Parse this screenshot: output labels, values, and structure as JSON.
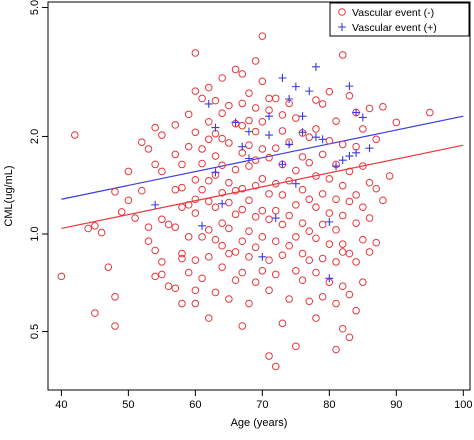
{
  "chart_data": {
    "type": "scatter",
    "xlabel": "Age (years)",
    "ylabel": "CML(ug/mL)",
    "xlim": [
      38,
      101
    ],
    "ylim": [
      0.33,
      5.2
    ],
    "y_scale": "log",
    "x_ticks": [
      40,
      50,
      60,
      70,
      80,
      90,
      100
    ],
    "y_ticks": [
      0.5,
      1.0,
      2.0,
      5.0
    ],
    "y_tick_labels": [
      "0.5",
      "1.0",
      "2.0",
      "5.0"
    ],
    "grid": false,
    "legend_position": "top-right",
    "series": [
      {
        "name": "Vascular event (-)",
        "color": "#e8383d",
        "marker": "circle",
        "points": [
          [
            40,
            0.74
          ],
          [
            42,
            2.02
          ],
          [
            44,
            1.04
          ],
          [
            45,
            0.57
          ],
          [
            45,
            1.06
          ],
          [
            46,
            1.01
          ],
          [
            47,
            0.79
          ],
          [
            48,
            0.64
          ],
          [
            48,
            0.52
          ],
          [
            48,
            1.35
          ],
          [
            49,
            1.17
          ],
          [
            50,
            1.27
          ],
          [
            50,
            1.56
          ],
          [
            51,
            1.12
          ],
          [
            52,
            1.36
          ],
          [
            52,
            1.92
          ],
          [
            53,
            0.95
          ],
          [
            53,
            1.05
          ],
          [
            53,
            1.83
          ],
          [
            54,
            0.89
          ],
          [
            54,
            0.74
          ],
          [
            54,
            2.13
          ],
          [
            54,
            1.64
          ],
          [
            55,
            0.75
          ],
          [
            55,
            0.82
          ],
          [
            55,
            1.11
          ],
          [
            55,
            1.56
          ],
          [
            55,
            2.02
          ],
          [
            56,
            0.69
          ],
          [
            56,
            1.07
          ],
          [
            57,
            0.68
          ],
          [
            57,
            1.05
          ],
          [
            57,
            1.37
          ],
          [
            57,
            1.76
          ],
          [
            57,
            2.17
          ],
          [
            58,
            0.84
          ],
          [
            58,
            0.61
          ],
          [
            58,
            0.87
          ],
          [
            58,
            1.21
          ],
          [
            58,
            1.39
          ],
          [
            58,
            1.64
          ],
          [
            59,
            0.76
          ],
          [
            59,
            0.98
          ],
          [
            59,
            1.23
          ],
          [
            59,
            1.86
          ],
          [
            59,
            2.34
          ],
          [
            60,
            0.61
          ],
          [
            60,
            0.67
          ],
          [
            60,
            0.83
          ],
          [
            60,
            1.16
          ],
          [
            60,
            1.28
          ],
          [
            60,
            1.47
          ],
          [
            60,
            2.06
          ],
          [
            60,
            2.76
          ],
          [
            60,
            3.62
          ],
          [
            61,
            0.73
          ],
          [
            61,
            0.98
          ],
          [
            61,
            1.37
          ],
          [
            61,
            1.65
          ],
          [
            61,
            1.83
          ],
          [
            61,
            2.62
          ],
          [
            62,
            0.55
          ],
          [
            62,
            0.85
          ],
          [
            62,
            1.03
          ],
          [
            62,
            1.26
          ],
          [
            62,
            1.46
          ],
          [
            62,
            1.96
          ],
          [
            62,
            2.22
          ],
          [
            62,
            2.83
          ],
          [
            63,
            0.66
          ],
          [
            63,
            0.96
          ],
          [
            63,
            1.21
          ],
          [
            63,
            1.52
          ],
          [
            63,
            1.74
          ],
          [
            63,
            2.04
          ],
          [
            63,
            2.58
          ],
          [
            64,
            0.79
          ],
          [
            64,
            0.92
          ],
          [
            64,
            1.08
          ],
          [
            64,
            1.34
          ],
          [
            64,
            1.63
          ],
          [
            64,
            1.97
          ],
          [
            64,
            2.36
          ],
          [
            64,
            3.03
          ],
          [
            65,
            0.63
          ],
          [
            65,
            0.87
          ],
          [
            65,
            1.04
          ],
          [
            65,
            1.25
          ],
          [
            65,
            1.44
          ],
          [
            65,
            1.91
          ],
          [
            65,
            2.49
          ],
          [
            66,
            0.72
          ],
          [
            66,
            0.88
          ],
          [
            66,
            1.15
          ],
          [
            66,
            1.36
          ],
          [
            66,
            1.58
          ],
          [
            66,
            2.19
          ],
          [
            66,
            3.22
          ],
          [
            67,
            0.52
          ],
          [
            67,
            0.76
          ],
          [
            67,
            0.95
          ],
          [
            67,
            1.19
          ],
          [
            67,
            1.38
          ],
          [
            67,
            1.78
          ],
          [
            67,
            2.16
          ],
          [
            67,
            2.53
          ],
          [
            67,
            3.12
          ],
          [
            68,
            0.61
          ],
          [
            68,
            0.85
          ],
          [
            68,
            1.02
          ],
          [
            68,
            1.27
          ],
          [
            68,
            1.62
          ],
          [
            68,
            1.88
          ],
          [
            68,
            2.24
          ],
          [
            68,
            2.72
          ],
          [
            69,
            0.71
          ],
          [
            69,
            0.91
          ],
          [
            69,
            1.13
          ],
          [
            69,
            1.41
          ],
          [
            69,
            1.69
          ],
          [
            69,
            2.07
          ],
          [
            69,
            2.45
          ],
          [
            69,
            3.42
          ],
          [
            70,
            0.77
          ],
          [
            70,
            0.98
          ],
          [
            70,
            1.18
          ],
          [
            70,
            1.48
          ],
          [
            70,
            1.83
          ],
          [
            70,
            2.22
          ],
          [
            70,
            2.96
          ],
          [
            70,
            4.08
          ],
          [
            71,
            0.42
          ],
          [
            71,
            0.67
          ],
          [
            71,
            0.83
          ],
          [
            71,
            1.11
          ],
          [
            71,
            1.33
          ],
          [
            71,
            1.72
          ],
          [
            71,
            2.41
          ],
          [
            71,
            2.62
          ],
          [
            72,
            0.39
          ],
          [
            72,
            0.75
          ],
          [
            72,
            0.95
          ],
          [
            72,
            1.18
          ],
          [
            72,
            1.43
          ],
          [
            72,
            1.84
          ],
          [
            72,
            2.62
          ],
          [
            73,
            0.53
          ],
          [
            73,
            0.86
          ],
          [
            73,
            1.07
          ],
          [
            73,
            1.32
          ],
          [
            73,
            1.64
          ],
          [
            73,
            2.08
          ],
          [
            73,
            2.33
          ],
          [
            74,
            0.63
          ],
          [
            74,
            0.92
          ],
          [
            74,
            1.14
          ],
          [
            74,
            1.46
          ],
          [
            74,
            1.92
          ],
          [
            74,
            2.53
          ],
          [
            75,
            0.45
          ],
          [
            75,
            0.77
          ],
          [
            75,
            0.98
          ],
          [
            75,
            1.23
          ],
          [
            75,
            1.57
          ],
          [
            75,
            2.28
          ],
          [
            76,
            0.72
          ],
          [
            76,
            0.87
          ],
          [
            76,
            1.08
          ],
          [
            76,
            1.37
          ],
          [
            76,
            1.73
          ],
          [
            76,
            2.05
          ],
          [
            77,
            0.62
          ],
          [
            77,
            0.83
          ],
          [
            77,
            1.02
          ],
          [
            77,
            1.28
          ],
          [
            77,
            1.66
          ],
          [
            77,
            1.99
          ],
          [
            78,
            0.55
          ],
          [
            78,
            0.76
          ],
          [
            78,
            0.97
          ],
          [
            78,
            1.21
          ],
          [
            78,
            1.51
          ],
          [
            78,
            2.11
          ],
          [
            78,
            2.59
          ],
          [
            79,
            0.64
          ],
          [
            79,
            0.84
          ],
          [
            79,
            1.07
          ],
          [
            79,
            1.33
          ],
          [
            79,
            1.76
          ],
          [
            79,
            2.52
          ],
          [
            80,
            0.71
          ],
          [
            80,
            0.93
          ],
          [
            80,
            1.16
          ],
          [
            80,
            1.48
          ],
          [
            80,
            1.94
          ],
          [
            80,
            2.75
          ],
          [
            81,
            0.44
          ],
          [
            81,
            0.61
          ],
          [
            81,
            0.82
          ],
          [
            81,
            1.03
          ],
          [
            81,
            1.28
          ],
          [
            81,
            1.64
          ],
          [
            81,
            2.23
          ],
          [
            82,
            0.51
          ],
          [
            82,
            0.69
          ],
          [
            82,
            0.88
          ],
          [
            82,
            0.93
          ],
          [
            82,
            1.14
          ],
          [
            82,
            1.41
          ],
          [
            82,
            1.89
          ],
          [
            82,
            3.57
          ],
          [
            83,
            0.48
          ],
          [
            83,
            0.65
          ],
          [
            83,
            0.87
          ],
          [
            83,
            1.26
          ],
          [
            83,
            1.56
          ],
          [
            83,
            2.67
          ],
          [
            84,
            0.58
          ],
          [
            84,
            0.82
          ],
          [
            84,
            1.08
          ],
          [
            84,
            1.32
          ],
          [
            84,
            1.86
          ],
          [
            84,
            2.37
          ],
          [
            85,
            0.71
          ],
          [
            85,
            0.96
          ],
          [
            85,
            1.21
          ],
          [
            85,
            1.62
          ],
          [
            85,
            2.11
          ],
          [
            86,
            0.88
          ],
          [
            86,
            1.12
          ],
          [
            86,
            1.44
          ],
          [
            86,
            2.44
          ],
          [
            87,
            0.94
          ],
          [
            87,
            1.38
          ],
          [
            87,
            1.96
          ],
          [
            88,
            1.27
          ],
          [
            88,
            2.47
          ],
          [
            89,
            1.51
          ],
          [
            90,
            2.21
          ],
          [
            95,
            2.37
          ]
        ],
        "trend": [
          [
            40,
            1.04
          ],
          [
            100,
            1.88
          ]
        ]
      },
      {
        "name": "Vascular event (+)",
        "color": "#3b3bdc",
        "marker": "plus",
        "points": [
          [
            54,
            1.23
          ],
          [
            61,
            1.06
          ],
          [
            62,
            2.52
          ],
          [
            63,
            1.55
          ],
          [
            63,
            2.13
          ],
          [
            64,
            1.24
          ],
          [
            66,
            2.21
          ],
          [
            67,
            1.86
          ],
          [
            68,
            1.71
          ],
          [
            68,
            2.07
          ],
          [
            70,
            0.85
          ],
          [
            71,
            2.02
          ],
          [
            71,
            2.31
          ],
          [
            72,
            1.12
          ],
          [
            73,
            3.03
          ],
          [
            73,
            1.64
          ],
          [
            74,
            2.61
          ],
          [
            74,
            1.89
          ],
          [
            75,
            2.85
          ],
          [
            75,
            1.43
          ],
          [
            76,
            2.31
          ],
          [
            76,
            2.06
          ],
          [
            77,
            2.76
          ],
          [
            78,
            3.28
          ],
          [
            78,
            1.99
          ],
          [
            79,
            1.96
          ],
          [
            80,
            1.09
          ],
          [
            80,
            0.73
          ],
          [
            81,
            1.62
          ],
          [
            82,
            1.69
          ],
          [
            83,
            2.86
          ],
          [
            83,
            1.74
          ],
          [
            84,
            2.37
          ],
          [
            84,
            1.78
          ],
          [
            85,
            2.29
          ],
          [
            86,
            1.84
          ]
        ],
        "trend": [
          [
            40,
            1.28
          ],
          [
            100,
            2.31
          ]
        ]
      }
    ]
  }
}
